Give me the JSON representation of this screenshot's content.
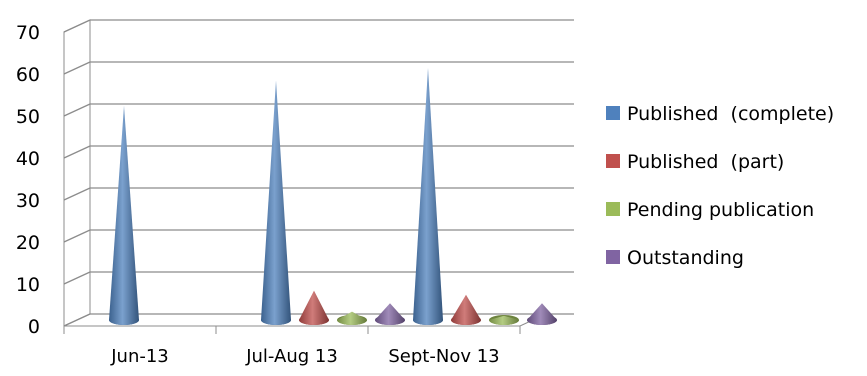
{
  "chart_data": {
    "type": "bar",
    "style": "3d-cone",
    "categories": [
      "Jun-13",
      "Jul-Aug 13",
      "Sept-Nov 13"
    ],
    "series": [
      {
        "name": "Published  (complete)",
        "color": "#4f81bd",
        "values": [
          51,
          57,
          60
        ]
      },
      {
        "name": "Published  (part)",
        "color": "#c0504d",
        "values": [
          0,
          7,
          6
        ]
      },
      {
        "name": "Pending publication",
        "color": "#9bbb59",
        "values": [
          0,
          2,
          1
        ]
      },
      {
        "name": "Outstanding",
        "color": "#8064a2",
        "values": [
          0,
          4,
          4
        ]
      }
    ],
    "yticks": [
      0,
      10,
      20,
      30,
      40,
      50,
      60,
      70
    ],
    "ylim": [
      0,
      70
    ],
    "grid": true,
    "legend": "right"
  }
}
